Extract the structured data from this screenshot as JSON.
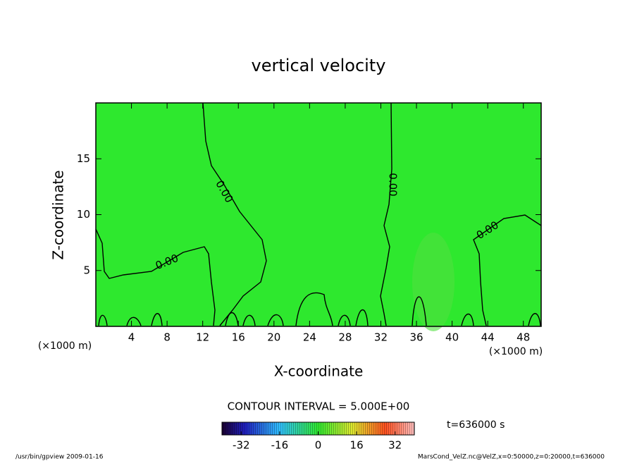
{
  "chart_data": {
    "type": "contour",
    "title": "vertical velocity",
    "xlabel": "X-coordinate",
    "ylabel": "Z-coordinate",
    "x_unit": "(×1000 m)",
    "xlim": [
      0,
      50
    ],
    "xticks": [
      4,
      8,
      12,
      16,
      20,
      24,
      28,
      32,
      36,
      40,
      44,
      48
    ],
    "ylim": [
      0,
      20
    ],
    "yticks": [
      5,
      10,
      15
    ],
    "fill_color": "#2ee82e",
    "contour_levels": [
      0
    ],
    "contour_labels": [
      "0.00"
    ],
    "contour_interval_text": "CONTOUR INTERVAL = 5.000E+00",
    "time_text": "t=636000 s",
    "clim": [
      -40,
      40
    ],
    "cticks": [
      -32,
      -16,
      0,
      16,
      32
    ],
    "footer_left": "/usr/bin/gpview  2009-01-16",
    "footer_right": "MarsCond_VelZ.nc@VelZ,x=0:50000,z=0:20000,t=636000"
  }
}
